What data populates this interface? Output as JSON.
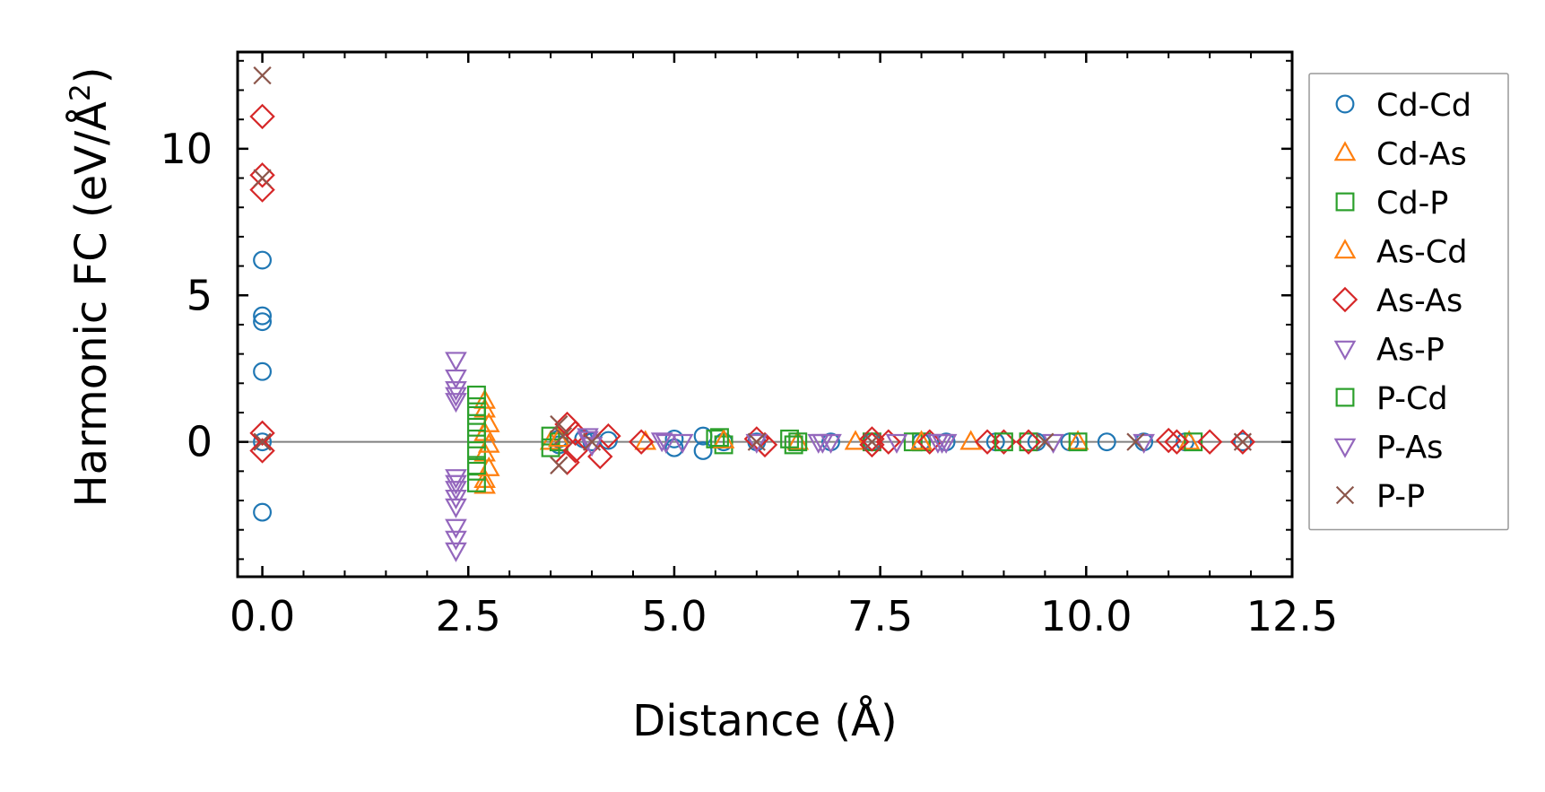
{
  "chart_data": {
    "type": "scatter",
    "title": "",
    "xlabel": "Distance (Å)",
    "ylabel_main": "Harmonic FC (eV/Å",
    "ylabel_sup": "2",
    "ylabel_close": ")",
    "xlim": [
      -0.3,
      12.5
    ],
    "ylim": [
      -4.6,
      13.3
    ],
    "xticks": [
      0.0,
      2.5,
      5.0,
      7.5,
      10.0,
      12.5
    ],
    "xtick_labels": [
      "0.0",
      "2.5",
      "5.0",
      "7.5",
      "10.0",
      "12.5"
    ],
    "yticks": [
      0,
      5,
      10
    ],
    "ytick_labels": [
      "0",
      "5",
      "10"
    ],
    "zero_line": true,
    "legend_position": "right",
    "series": [
      {
        "name": "Cd-Cd",
        "marker": "circle",
        "color": "#1f77b4",
        "points": [
          [
            0,
            6.2
          ],
          [
            0,
            4.3
          ],
          [
            0,
            4.1
          ],
          [
            0,
            2.4
          ],
          [
            0,
            -2.4
          ],
          [
            0,
            0
          ],
          [
            3.6,
            -0.1
          ],
          [
            3.6,
            0.1
          ],
          [
            3.9,
            0.1
          ],
          [
            4.0,
            0
          ],
          [
            4.2,
            0.05
          ],
          [
            5.0,
            -0.2
          ],
          [
            5.0,
            0.1
          ],
          [
            5.35,
            0.2
          ],
          [
            5.35,
            -0.3
          ],
          [
            5.6,
            0
          ],
          [
            6.0,
            0
          ],
          [
            6.9,
            0
          ],
          [
            7.4,
            0
          ],
          [
            8.0,
            0
          ],
          [
            8.3,
            0
          ],
          [
            8.9,
            0
          ],
          [
            9.4,
            0
          ],
          [
            9.8,
            0
          ],
          [
            10.25,
            0
          ],
          [
            10.7,
            0
          ],
          [
            11.2,
            0
          ],
          [
            11.9,
            0
          ]
        ]
      },
      {
        "name": "Cd-As",
        "marker": "triangle-up",
        "color": "#ff7f0e",
        "points": [
          [
            2.7,
            1.4
          ],
          [
            2.7,
            1.1
          ],
          [
            2.7,
            0.3
          ],
          [
            2.7,
            -0.4
          ],
          [
            2.7,
            -1.3
          ],
          [
            2.7,
            -1.5
          ],
          [
            3.5,
            0
          ],
          [
            4.65,
            0
          ],
          [
            6.5,
            0
          ],
          [
            7.2,
            0
          ],
          [
            8.6,
            0
          ],
          [
            9.9,
            0
          ],
          [
            11.25,
            0
          ]
        ]
      },
      {
        "name": "Cd-P",
        "marker": "square",
        "color": "#2ca02c",
        "points": [
          [
            2.6,
            1.6
          ],
          [
            2.6,
            1.2
          ],
          [
            2.6,
            0.5
          ],
          [
            2.6,
            -0.3
          ],
          [
            2.6,
            -1.0
          ],
          [
            2.6,
            -1.4
          ],
          [
            3.5,
            0.2
          ],
          [
            3.5,
            -0.2
          ],
          [
            3.6,
            0
          ],
          [
            5.5,
            0.1
          ],
          [
            5.6,
            -0.1
          ],
          [
            6.4,
            0.1
          ],
          [
            6.5,
            0
          ],
          [
            7.4,
            0
          ],
          [
            7.9,
            0
          ],
          [
            8.0,
            0
          ],
          [
            9.3,
            0
          ],
          [
            9.9,
            0
          ],
          [
            11.3,
            0
          ]
        ]
      },
      {
        "name": "As-Cd",
        "marker": "triangle-up",
        "color": "#ff7f0e",
        "points": [
          [
            2.75,
            0.6
          ],
          [
            2.75,
            -0.1
          ],
          [
            2.75,
            -0.9
          ],
          [
            3.6,
            0.1
          ],
          [
            5.6,
            0.05
          ],
          [
            8.0,
            0
          ]
        ]
      },
      {
        "name": "As-As",
        "marker": "diamond",
        "color": "#d62728",
        "points": [
          [
            0,
            11.1
          ],
          [
            0,
            9.1
          ],
          [
            0,
            8.6
          ],
          [
            0,
            0.3
          ],
          [
            0,
            -0.3
          ],
          [
            3.7,
            0.6
          ],
          [
            3.7,
            -0.7
          ],
          [
            3.8,
            0.3
          ],
          [
            3.8,
            -0.3
          ],
          [
            4.1,
            -0.5
          ],
          [
            4.2,
            0.2
          ],
          [
            4.6,
            0
          ],
          [
            6.0,
            0.1
          ],
          [
            6.1,
            -0.1
          ],
          [
            7.4,
            0.1
          ],
          [
            7.4,
            -0.1
          ],
          [
            7.6,
            0
          ],
          [
            8.1,
            0
          ],
          [
            8.8,
            0
          ],
          [
            9.0,
            0
          ],
          [
            9.3,
            0
          ],
          [
            11.0,
            0.05
          ],
          [
            11.1,
            0
          ],
          [
            11.5,
            0
          ],
          [
            11.9,
            0
          ]
        ]
      },
      {
        "name": "As-P",
        "marker": "triangle-down",
        "color": "#9467bd",
        "points": [
          [
            2.35,
            2.8
          ],
          [
            2.35,
            2.2
          ],
          [
            2.35,
            1.8
          ],
          [
            2.35,
            1.6
          ],
          [
            2.35,
            1.4
          ],
          [
            2.35,
            -1.4
          ],
          [
            2.35,
            -1.6
          ],
          [
            2.35,
            -2.2
          ],
          [
            2.35,
            -2.9
          ],
          [
            2.35,
            -3.3
          ],
          [
            2.35,
            -3.7
          ],
          [
            3.95,
            0.2
          ],
          [
            4.0,
            -0.1
          ],
          [
            4.9,
            0
          ],
          [
            5.1,
            0
          ],
          [
            6.0,
            0
          ],
          [
            6.8,
            0
          ],
          [
            6.9,
            0
          ],
          [
            7.7,
            0
          ],
          [
            8.2,
            0
          ],
          [
            8.3,
            0
          ],
          [
            9.6,
            0
          ],
          [
            10.7,
            0
          ]
        ]
      },
      {
        "name": "P-Cd",
        "marker": "square",
        "color": "#2ca02c",
        "points": [
          [
            2.6,
            0.9
          ],
          [
            2.6,
            0.1
          ],
          [
            2.6,
            -0.8
          ],
          [
            5.55,
            0.15
          ],
          [
            6.45,
            -0.1
          ],
          [
            9.0,
            0
          ]
        ]
      },
      {
        "name": "P-As",
        "marker": "triangle-down",
        "color": "#9467bd",
        "points": [
          [
            2.35,
            -1.2
          ],
          [
            2.35,
            -1.9
          ],
          [
            3.95,
            0.1
          ],
          [
            4.85,
            0.05
          ],
          [
            6.75,
            0
          ],
          [
            8.25,
            0
          ]
        ]
      },
      {
        "name": "P-P",
        "marker": "x",
        "color": "#8c564b",
        "points": [
          [
            0,
            12.5
          ],
          [
            0,
            9.0
          ],
          [
            0,
            0
          ],
          [
            3.6,
            0.6
          ],
          [
            3.6,
            -0.8
          ],
          [
            3.65,
            0.2
          ],
          [
            4.0,
            0
          ],
          [
            6.0,
            0
          ],
          [
            7.4,
            0
          ],
          [
            9.5,
            0
          ],
          [
            10.6,
            0
          ],
          [
            11.9,
            0
          ]
        ]
      }
    ]
  }
}
